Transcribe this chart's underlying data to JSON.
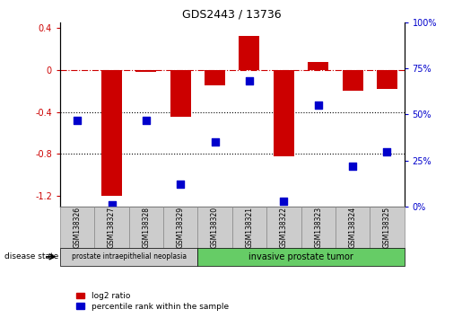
{
  "title": "GDS2443 / 13736",
  "samples": [
    "GSM138326",
    "GSM138327",
    "GSM138328",
    "GSM138329",
    "GSM138320",
    "GSM138321",
    "GSM138322",
    "GSM138323",
    "GSM138324",
    "GSM138325"
  ],
  "log2_ratio": [
    0.0,
    -1.2,
    -0.02,
    -0.45,
    -0.15,
    0.32,
    -0.82,
    0.07,
    -0.2,
    -0.18
  ],
  "percentile_rank": [
    47,
    1,
    47,
    12,
    35,
    68,
    3,
    55,
    22,
    30
  ],
  "bar_color": "#cc0000",
  "dot_color": "#0000cc",
  "ylim_left": [
    -1.3,
    0.45
  ],
  "ylim_right": [
    0,
    100
  ],
  "yticks_left": [
    -1.2,
    -0.8,
    -0.4,
    0.0,
    0.4
  ],
  "yticks_right": [
    0,
    25,
    50,
    75,
    100
  ],
  "dotted_hlines": [
    -0.4,
    -0.8
  ],
  "group1_count": 4,
  "group2_count": 6,
  "group1_label": "prostate intraepithelial neoplasia",
  "group2_label": "invasive prostate tumor",
  "group1_color": "#cccccc",
  "group2_color": "#66cc66",
  "sample_box_color": "#cccccc",
  "sample_box_edge": "#888888",
  "disease_label": "disease state",
  "legend_bar_label": "log2 ratio",
  "legend_dot_label": "percentile rank within the sample",
  "bg_color": "#ffffff"
}
